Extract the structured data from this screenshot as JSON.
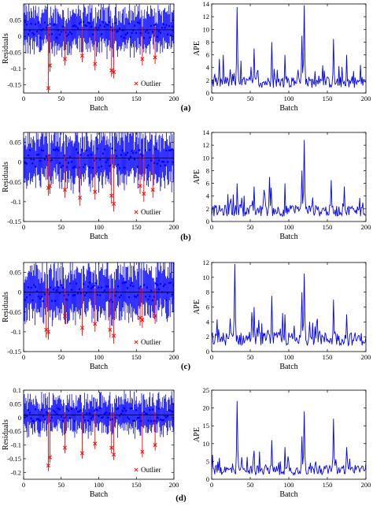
{
  "chart_data": [
    {
      "type": "scatter",
      "panel": "(a)",
      "xlabel": "Batch",
      "ylabel": "Residuals",
      "xlim": [
        0,
        200
      ],
      "ylim": [
        -0.175,
        0.1
      ],
      "xticks": [
        0,
        50,
        100,
        150,
        200
      ],
      "yticks": [
        -0.15,
        -0.1,
        -0.05,
        0,
        0.05
      ],
      "ytick_labels": [
        "-0.15",
        "-0.1",
        "-0.05",
        "0",
        "0.05"
      ],
      "legend": {
        "entries": [
          "Outlier"
        ],
        "position": "bottom-right"
      },
      "series": [
        {
          "name": "Residuals",
          "color": "#0000ff",
          "pattern": "error bars around 0, spread ±0.06",
          "values": [
            0.02,
            -0.01,
            0.03,
            0.0,
            -0.02,
            0.04,
            0.01,
            -0.03,
            0.02,
            0.01
          ]
        },
        {
          "name": "Outlier",
          "color": "#ff0000",
          "x": [
            33,
            35,
            55,
            78,
            95,
            117,
            120,
            158,
            175
          ],
          "y": [
            -0.16,
            -0.09,
            -0.07,
            -0.06,
            -0.085,
            -0.105,
            -0.11,
            -0.07,
            -0.065
          ]
        }
      ]
    },
    {
      "type": "line",
      "panel": "(a)",
      "xlabel": "Batch",
      "ylabel": "APE",
      "xlim": [
        0,
        200
      ],
      "ylim": [
        0,
        14
      ],
      "xticks": [
        0,
        50,
        100,
        150,
        200
      ],
      "yticks": [
        0,
        2,
        4,
        6,
        8,
        10,
        12,
        14
      ],
      "series": [
        {
          "name": "APE",
          "color": "#0000ff",
          "peaks": [
            [
              15,
              6
            ],
            [
              33,
              13.5
            ],
            [
              55,
              7
            ],
            [
              78,
              8
            ],
            [
              95,
              6
            ],
            [
              117,
              9
            ],
            [
              120,
              13.8
            ],
            [
              158,
              8.5
            ],
            [
              175,
              6
            ]
          ],
          "baseline": 2
        }
      ]
    },
    {
      "type": "scatter",
      "panel": "(b)",
      "xlabel": "Batch",
      "ylabel": "Residuals",
      "xlim": [
        0,
        200
      ],
      "ylim": [
        -0.15,
        0.075
      ],
      "xticks": [
        0,
        50,
        100,
        150,
        200
      ],
      "yticks": [
        -0.15,
        -0.1,
        -0.05,
        0,
        0.05
      ],
      "ytick_labels": [
        "-0.15",
        "-0.1",
        "-0.05",
        "0",
        "0.05"
      ],
      "legend": {
        "entries": [
          "Outlier"
        ],
        "position": "bottom-right"
      },
      "series": [
        {
          "name": "Residuals",
          "color": "#0000ff",
          "pattern": "error bars around 0.01, spread ±0.06",
          "values": [
            0.01,
            0.02,
            -0.01,
            0.03,
            0.0
          ]
        },
        {
          "name": "Outlier",
          "color": "#ff0000",
          "x": [
            33,
            35,
            55,
            75,
            95,
            117,
            120,
            155,
            160,
            172
          ],
          "y": [
            -0.065,
            -0.06,
            -0.07,
            -0.09,
            -0.075,
            -0.085,
            -0.105,
            -0.06,
            -0.08,
            -0.07
          ]
        }
      ]
    },
    {
      "type": "line",
      "panel": "(b)",
      "xlabel": "Batch",
      "ylabel": "APE",
      "xlim": [
        0,
        200
      ],
      "ylim": [
        0,
        14
      ],
      "xticks": [
        0,
        50,
        100,
        150,
        200
      ],
      "yticks": [
        0,
        2,
        4,
        6,
        8,
        10,
        12,
        14
      ],
      "series": [
        {
          "name": "APE",
          "color": "#0000ff",
          "peaks": [
            [
              33,
              6
            ],
            [
              55,
              5.5
            ],
            [
              75,
              7
            ],
            [
              95,
              6
            ],
            [
              117,
              8
            ],
            [
              120,
              12.8
            ],
            [
              155,
              6.5
            ],
            [
              172,
              5.5
            ]
          ],
          "baseline": 2
        }
      ]
    },
    {
      "type": "scatter",
      "panel": "(c)",
      "xlabel": "Batch",
      "ylabel": "Residuals",
      "xlim": [
        0,
        200
      ],
      "ylim": [
        -0.15,
        0.075
      ],
      "xticks": [
        0,
        50,
        100,
        150,
        200
      ],
      "yticks": [
        -0.15,
        -0.1,
        -0.05,
        0,
        0.05
      ],
      "ytick_labels": [
        "-0.15",
        "-0.1",
        "-0.05",
        "0",
        "0.05"
      ],
      "legend": {
        "entries": [
          "Outlier"
        ],
        "position": "bottom-right"
      },
      "series": [
        {
          "name": "Residuals",
          "color": "#0000ff",
          "pattern": "error bars around 0.005, spread ±0.06",
          "values": [
            0.0,
            0.02,
            -0.02,
            0.03
          ]
        },
        {
          "name": "Outlier",
          "color": "#ff0000",
          "x": [
            30,
            33,
            55,
            78,
            95,
            115,
            120,
            155,
            158,
            175
          ],
          "y": [
            -0.095,
            -0.1,
            -0.06,
            -0.09,
            -0.08,
            -0.095,
            -0.11,
            -0.065,
            -0.07,
            -0.06
          ]
        }
      ]
    },
    {
      "type": "line",
      "panel": "(c)",
      "xlabel": "Batch",
      "ylabel": "APE",
      "xlim": [
        0,
        200
      ],
      "ylim": [
        0,
        12
      ],
      "xticks": [
        0,
        50,
        100,
        150,
        200
      ],
      "yticks": [
        0,
        2,
        4,
        6,
        8,
        10,
        12
      ],
      "series": [
        {
          "name": "APE",
          "color": "#0000ff",
          "peaks": [
            [
              30,
              11.8
            ],
            [
              55,
              6
            ],
            [
              78,
              7.5
            ],
            [
              95,
              5
            ],
            [
              117,
              8
            ],
            [
              120,
              10.5
            ],
            [
              158,
              7
            ],
            [
              175,
              5
            ]
          ],
          "baseline": 2
        }
      ]
    },
    {
      "type": "scatter",
      "panel": "(d)",
      "xlabel": "Batch",
      "ylabel": "Residuals",
      "xlim": [
        0,
        200
      ],
      "ylim": [
        -0.225,
        0.1
      ],
      "xticks": [
        0,
        50,
        100,
        150,
        200
      ],
      "yticks": [
        -0.2,
        -0.15,
        -0.1,
        -0.05,
        0,
        0.05,
        0.1
      ],
      "ytick_labels": [
        "-0.2",
        "-0.15",
        "-0.1",
        "-0.05",
        "0",
        "0.05",
        "0.1"
      ],
      "legend": {
        "entries": [
          "Outlier"
        ],
        "position": "bottom-right"
      },
      "series": [
        {
          "name": "Residuals",
          "color": "#0000ff",
          "pattern": "error bars around 0.01, spread ±0.07",
          "values": [
            0.01,
            0.03,
            -0.02,
            0.04
          ]
        },
        {
          "name": "Outlier",
          "color": "#ff0000",
          "x": [
            33,
            35,
            55,
            78,
            95,
            117,
            120,
            158,
            175
          ],
          "y": [
            -0.175,
            -0.145,
            -0.11,
            -0.13,
            -0.095,
            -0.11,
            -0.135,
            -0.125,
            -0.1
          ]
        }
      ]
    },
    {
      "type": "line",
      "panel": "(d)",
      "xlabel": "Batch",
      "ylabel": "APE",
      "xlim": [
        0,
        200
      ],
      "ylim": [
        0,
        25
      ],
      "xticks": [
        0,
        50,
        100,
        150,
        200
      ],
      "yticks": [
        0,
        5,
        10,
        15,
        20,
        25
      ],
      "series": [
        {
          "name": "APE",
          "color": "#0000ff",
          "peaks": [
            [
              10,
              6
            ],
            [
              33,
              22
            ],
            [
              55,
              8
            ],
            [
              78,
              11
            ],
            [
              95,
              9
            ],
            [
              117,
              12
            ],
            [
              120,
              19
            ],
            [
              158,
              17
            ],
            [
              175,
              9
            ]
          ],
          "baseline": 3
        }
      ]
    }
  ],
  "panel_labels": [
    "(a)",
    "(b)",
    "(c)",
    "(d)"
  ],
  "colors": {
    "series": "#0000ff",
    "outlier": "#ff0000",
    "zero_line": "#000000"
  }
}
